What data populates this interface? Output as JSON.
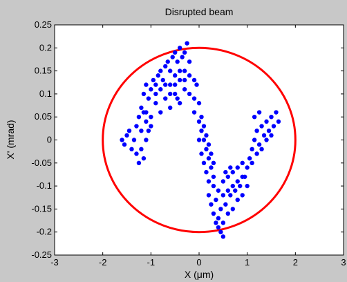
{
  "chart_data": {
    "type": "scatter",
    "title": "Disrupted beam",
    "xlabel": "X (μm)",
    "ylabel": "X' (mrad)",
    "xlim": [
      -3,
      3
    ],
    "ylim": [
      -0.25,
      0.25
    ],
    "xticks": [
      -3,
      -2,
      -1,
      0,
      1,
      2,
      3
    ],
    "yticks": [
      -0.25,
      -0.2,
      -0.15,
      -0.1,
      -0.05,
      0,
      0.05,
      0.1,
      0.15,
      0.2,
      0.25
    ],
    "xtick_labels": [
      "-3",
      "-2",
      "-1",
      "0",
      "1",
      "2",
      "3"
    ],
    "ytick_labels": [
      "-0.25",
      "-0.2",
      "-0.15",
      "-0.1",
      "-0.05",
      "0",
      "0.05",
      "0.1",
      "0.15",
      "0.2",
      "0.25"
    ],
    "grid": false,
    "background": "#c8c8c8",
    "plot_background": "#ffffff",
    "colors": {
      "points": "#0000ff",
      "ellipse": "#ff0000"
    },
    "ellipse": {
      "center": [
        0,
        0
      ],
      "radius_x": 2.0,
      "radius_y": 0.2
    },
    "series": [
      {
        "points": [
          [
            -1.2,
            0.07
          ],
          [
            -1.15,
            0.1
          ],
          [
            -1.1,
            0.12
          ],
          [
            -1.05,
            0.09
          ],
          [
            -1.0,
            0.11
          ],
          [
            -0.95,
            0.13
          ],
          [
            -0.9,
            0.12
          ],
          [
            -0.85,
            0.14
          ],
          [
            -0.8,
            0.15
          ],
          [
            -0.75,
            0.13
          ],
          [
            -0.7,
            0.16
          ],
          [
            -0.65,
            0.17
          ],
          [
            -0.6,
            0.15
          ],
          [
            -0.55,
            0.18
          ],
          [
            -0.5,
            0.19
          ],
          [
            -0.45,
            0.17
          ],
          [
            -0.4,
            0.2
          ],
          [
            -0.35,
            0.18
          ],
          [
            -0.3,
            0.19
          ],
          [
            -0.25,
            0.21
          ],
          [
            -0.2,
            0.17
          ],
          [
            -1.1,
            0.06
          ],
          [
            -1.0,
            0.05
          ],
          [
            -0.9,
            0.08
          ],
          [
            -0.8,
            0.06
          ],
          [
            -0.7,
            0.09
          ],
          [
            -0.6,
            0.07
          ],
          [
            -0.5,
            0.1
          ],
          [
            -0.4,
            0.08
          ],
          [
            -0.3,
            0.11
          ],
          [
            -0.2,
            0.1
          ],
          [
            -0.1,
            0.09
          ],
          [
            -0.05,
            0.12
          ],
          [
            0.0,
            0.08
          ],
          [
            -0.9,
            0.1
          ],
          [
            -0.8,
            0.11
          ],
          [
            -0.7,
            0.12
          ],
          [
            -0.6,
            0.12
          ],
          [
            -0.5,
            0.14
          ],
          [
            -0.4,
            0.15
          ],
          [
            -0.3,
            0.15
          ],
          [
            -0.2,
            0.14
          ],
          [
            -0.1,
            0.13
          ],
          [
            -0.6,
            0.1
          ],
          [
            -0.5,
            0.12
          ],
          [
            -0.4,
            0.13
          ],
          [
            -0.3,
            0.13
          ],
          [
            -0.45,
            0.09
          ],
          [
            -1.6,
            0.0
          ],
          [
            -1.55,
            -0.01
          ],
          [
            -1.5,
            0.01
          ],
          [
            -1.45,
            0.02
          ],
          [
            -1.4,
            -0.02
          ],
          [
            -1.35,
            0.0
          ],
          [
            -1.3,
            -0.03
          ],
          [
            -1.3,
            0.03
          ],
          [
            -1.25,
            -0.05
          ],
          [
            -1.2,
            -0.02
          ],
          [
            -1.2,
            0.02
          ],
          [
            -1.15,
            -0.04
          ],
          [
            -1.1,
            0.0
          ],
          [
            -1.1,
            0.04
          ],
          [
            -1.05,
            0.02
          ],
          [
            -1.0,
            0.03
          ],
          [
            -1.25,
            0.05
          ],
          [
            -1.15,
            0.06
          ],
          [
            -0.1,
            0.06
          ],
          [
            0.0,
            0.04
          ],
          [
            0.05,
            0.02
          ],
          [
            0.1,
            0.0
          ],
          [
            0.15,
            -0.02
          ],
          [
            0.2,
            -0.04
          ],
          [
            0.25,
            -0.06
          ],
          [
            0.3,
            -0.08
          ],
          [
            0.05,
            0.05
          ],
          [
            0.1,
            0.03
          ],
          [
            0.15,
            0.01
          ],
          [
            0.2,
            -0.01
          ],
          [
            0.25,
            -0.03
          ],
          [
            0.3,
            -0.05
          ],
          [
            0.0,
            0.0
          ],
          [
            0.05,
            -0.03
          ],
          [
            0.1,
            -0.05
          ],
          [
            0.15,
            -0.07
          ],
          [
            0.2,
            -0.09
          ],
          [
            0.2,
            -0.12
          ],
          [
            0.25,
            -0.14
          ],
          [
            0.3,
            -0.16
          ],
          [
            0.35,
            -0.13
          ],
          [
            0.4,
            -0.17
          ],
          [
            0.45,
            -0.15
          ],
          [
            0.5,
            -0.18
          ],
          [
            0.55,
            -0.14
          ],
          [
            0.6,
            -0.16
          ],
          [
            0.65,
            -0.12
          ],
          [
            0.7,
            -0.15
          ],
          [
            0.75,
            -0.11
          ],
          [
            0.8,
            -0.13
          ],
          [
            0.85,
            -0.1
          ],
          [
            0.9,
            -0.12
          ],
          [
            0.95,
            -0.08
          ],
          [
            1.0,
            -0.1
          ],
          [
            0.4,
            -0.19
          ],
          [
            0.45,
            -0.2
          ],
          [
            0.35,
            -0.18
          ],
          [
            0.5,
            -0.21
          ],
          [
            0.3,
            -0.1
          ],
          [
            0.4,
            -0.11
          ],
          [
            0.5,
            -0.09
          ],
          [
            0.6,
            -0.08
          ],
          [
            0.7,
            -0.07
          ],
          [
            0.8,
            -0.06
          ],
          [
            0.9,
            -0.05
          ],
          [
            0.5,
            -0.12
          ],
          [
            0.6,
            -0.11
          ],
          [
            0.7,
            -0.1
          ],
          [
            0.8,
            -0.09
          ],
          [
            0.9,
            -0.08
          ],
          [
            0.55,
            -0.07
          ],
          [
            0.65,
            -0.06
          ],
          [
            1.0,
            -0.06
          ],
          [
            1.05,
            -0.04
          ],
          [
            1.1,
            -0.02
          ],
          [
            1.15,
            0.0
          ],
          [
            1.2,
            0.02
          ],
          [
            1.25,
            -0.01
          ],
          [
            1.3,
            0.03
          ],
          [
            1.35,
            0.01
          ],
          [
            1.4,
            0.04
          ],
          [
            1.45,
            0.02
          ],
          [
            1.5,
            0.05
          ],
          [
            1.55,
            0.03
          ],
          [
            1.6,
            0.06
          ],
          [
            1.65,
            0.04
          ],
          [
            1.1,
            -0.05
          ],
          [
            1.2,
            -0.03
          ],
          [
            1.3,
            -0.02
          ],
          [
            1.4,
            0.0
          ],
          [
            1.5,
            0.01
          ],
          [
            1.15,
            0.05
          ],
          [
            1.25,
            0.06
          ]
        ]
      }
    ]
  }
}
